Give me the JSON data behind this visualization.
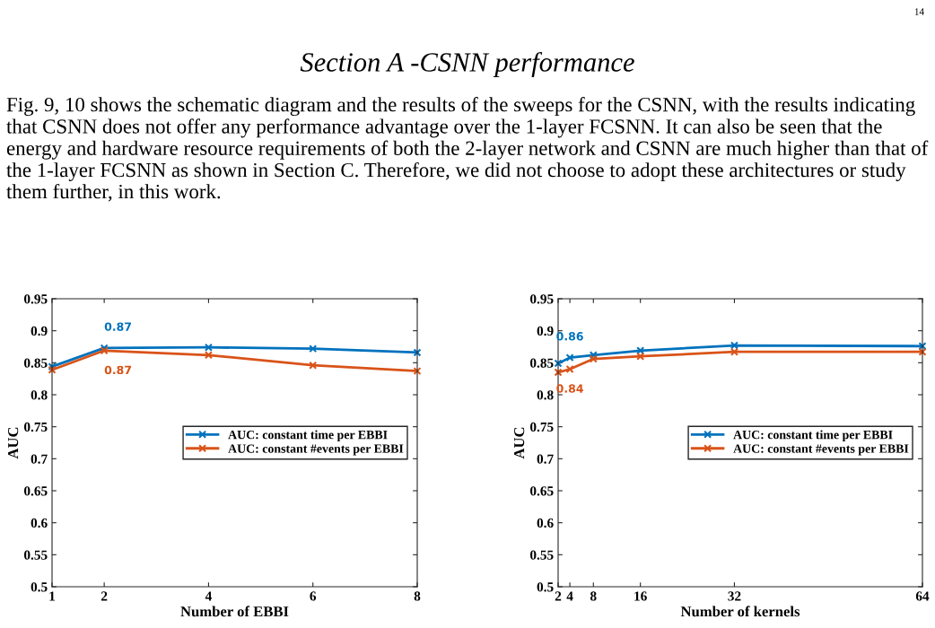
{
  "chart_data": [
    {
      "type": "line",
      "xlabel": "Number of EBBI",
      "ylabel": "AUC",
      "x": [
        1,
        2,
        4,
        6,
        8
      ],
      "xlim": [
        1,
        8
      ],
      "xticks": [
        1,
        2,
        4,
        6,
        8
      ],
      "ylim": [
        0.5,
        0.95
      ],
      "yticks": [
        0.5,
        0.55,
        0.6,
        0.65,
        0.7,
        0.75,
        0.8,
        0.85,
        0.9,
        0.95
      ],
      "grid": false,
      "legend": "right",
      "marker": "cross",
      "line_style": "solid",
      "series": [
        {
          "name": "AUC: constant time per EBBI",
          "color": "#0072bd",
          "values": [
            0.844,
            0.873,
            0.874,
            0.872,
            0.866
          ],
          "value_labels": [
            null,
            "0.87",
            null,
            null,
            null
          ]
        },
        {
          "name": "AUC: constant #events per EBBI",
          "color": "#d95319",
          "values": [
            0.839,
            0.869,
            0.862,
            0.846,
            0.837
          ],
          "value_labels": [
            null,
            "0.87",
            null,
            null,
            null
          ]
        }
      ],
      "annotations": [
        "14",
        "Section A -CSNN performance",
        "Fig. 9, 10 shows the schematic diagram and the results of the sweeps for the CSNN, with the results indicating that CSNN does not offer any performance advantage over the 1-layer FCSNN. It can also be seen that the energy and hardware resource requirements of both the 2-layer network and CSNN are much higher than that of the 1-layer FCSNN as shown in Section C. Therefore, we did not choose to adopt these architectures or study them further, in this work."
      ]
    },
    {
      "type": "line",
      "xlabel": "Number of kernels",
      "ylabel": "AUC",
      "x": [
        2,
        4,
        8,
        16,
        32,
        64
      ],
      "xlim": [
        2,
        64
      ],
      "xticks": [
        2,
        4,
        8,
        16,
        32,
        64
      ],
      "ylim": [
        0.5,
        0.95
      ],
      "yticks": [
        0.5,
        0.55,
        0.6,
        0.65,
        0.7,
        0.75,
        0.8,
        0.85,
        0.9,
        0.95
      ],
      "grid": false,
      "legend": "right",
      "marker": "cross",
      "line_style": "solid",
      "series": [
        {
          "name": "AUC: constant time per EBBI",
          "color": "#0072bd",
          "values": [
            0.849,
            0.858,
            0.862,
            0.869,
            0.877,
            0.876
          ],
          "value_labels": [
            null,
            "0.86",
            null,
            null,
            null,
            null
          ]
        },
        {
          "name": "AUC: constant #events per EBBI",
          "color": "#d95319",
          "values": [
            0.835,
            0.84,
            0.856,
            0.86,
            0.867,
            0.867
          ],
          "value_labels": [
            null,
            "0.84",
            null,
            null,
            null,
            null
          ]
        }
      ]
    }
  ]
}
